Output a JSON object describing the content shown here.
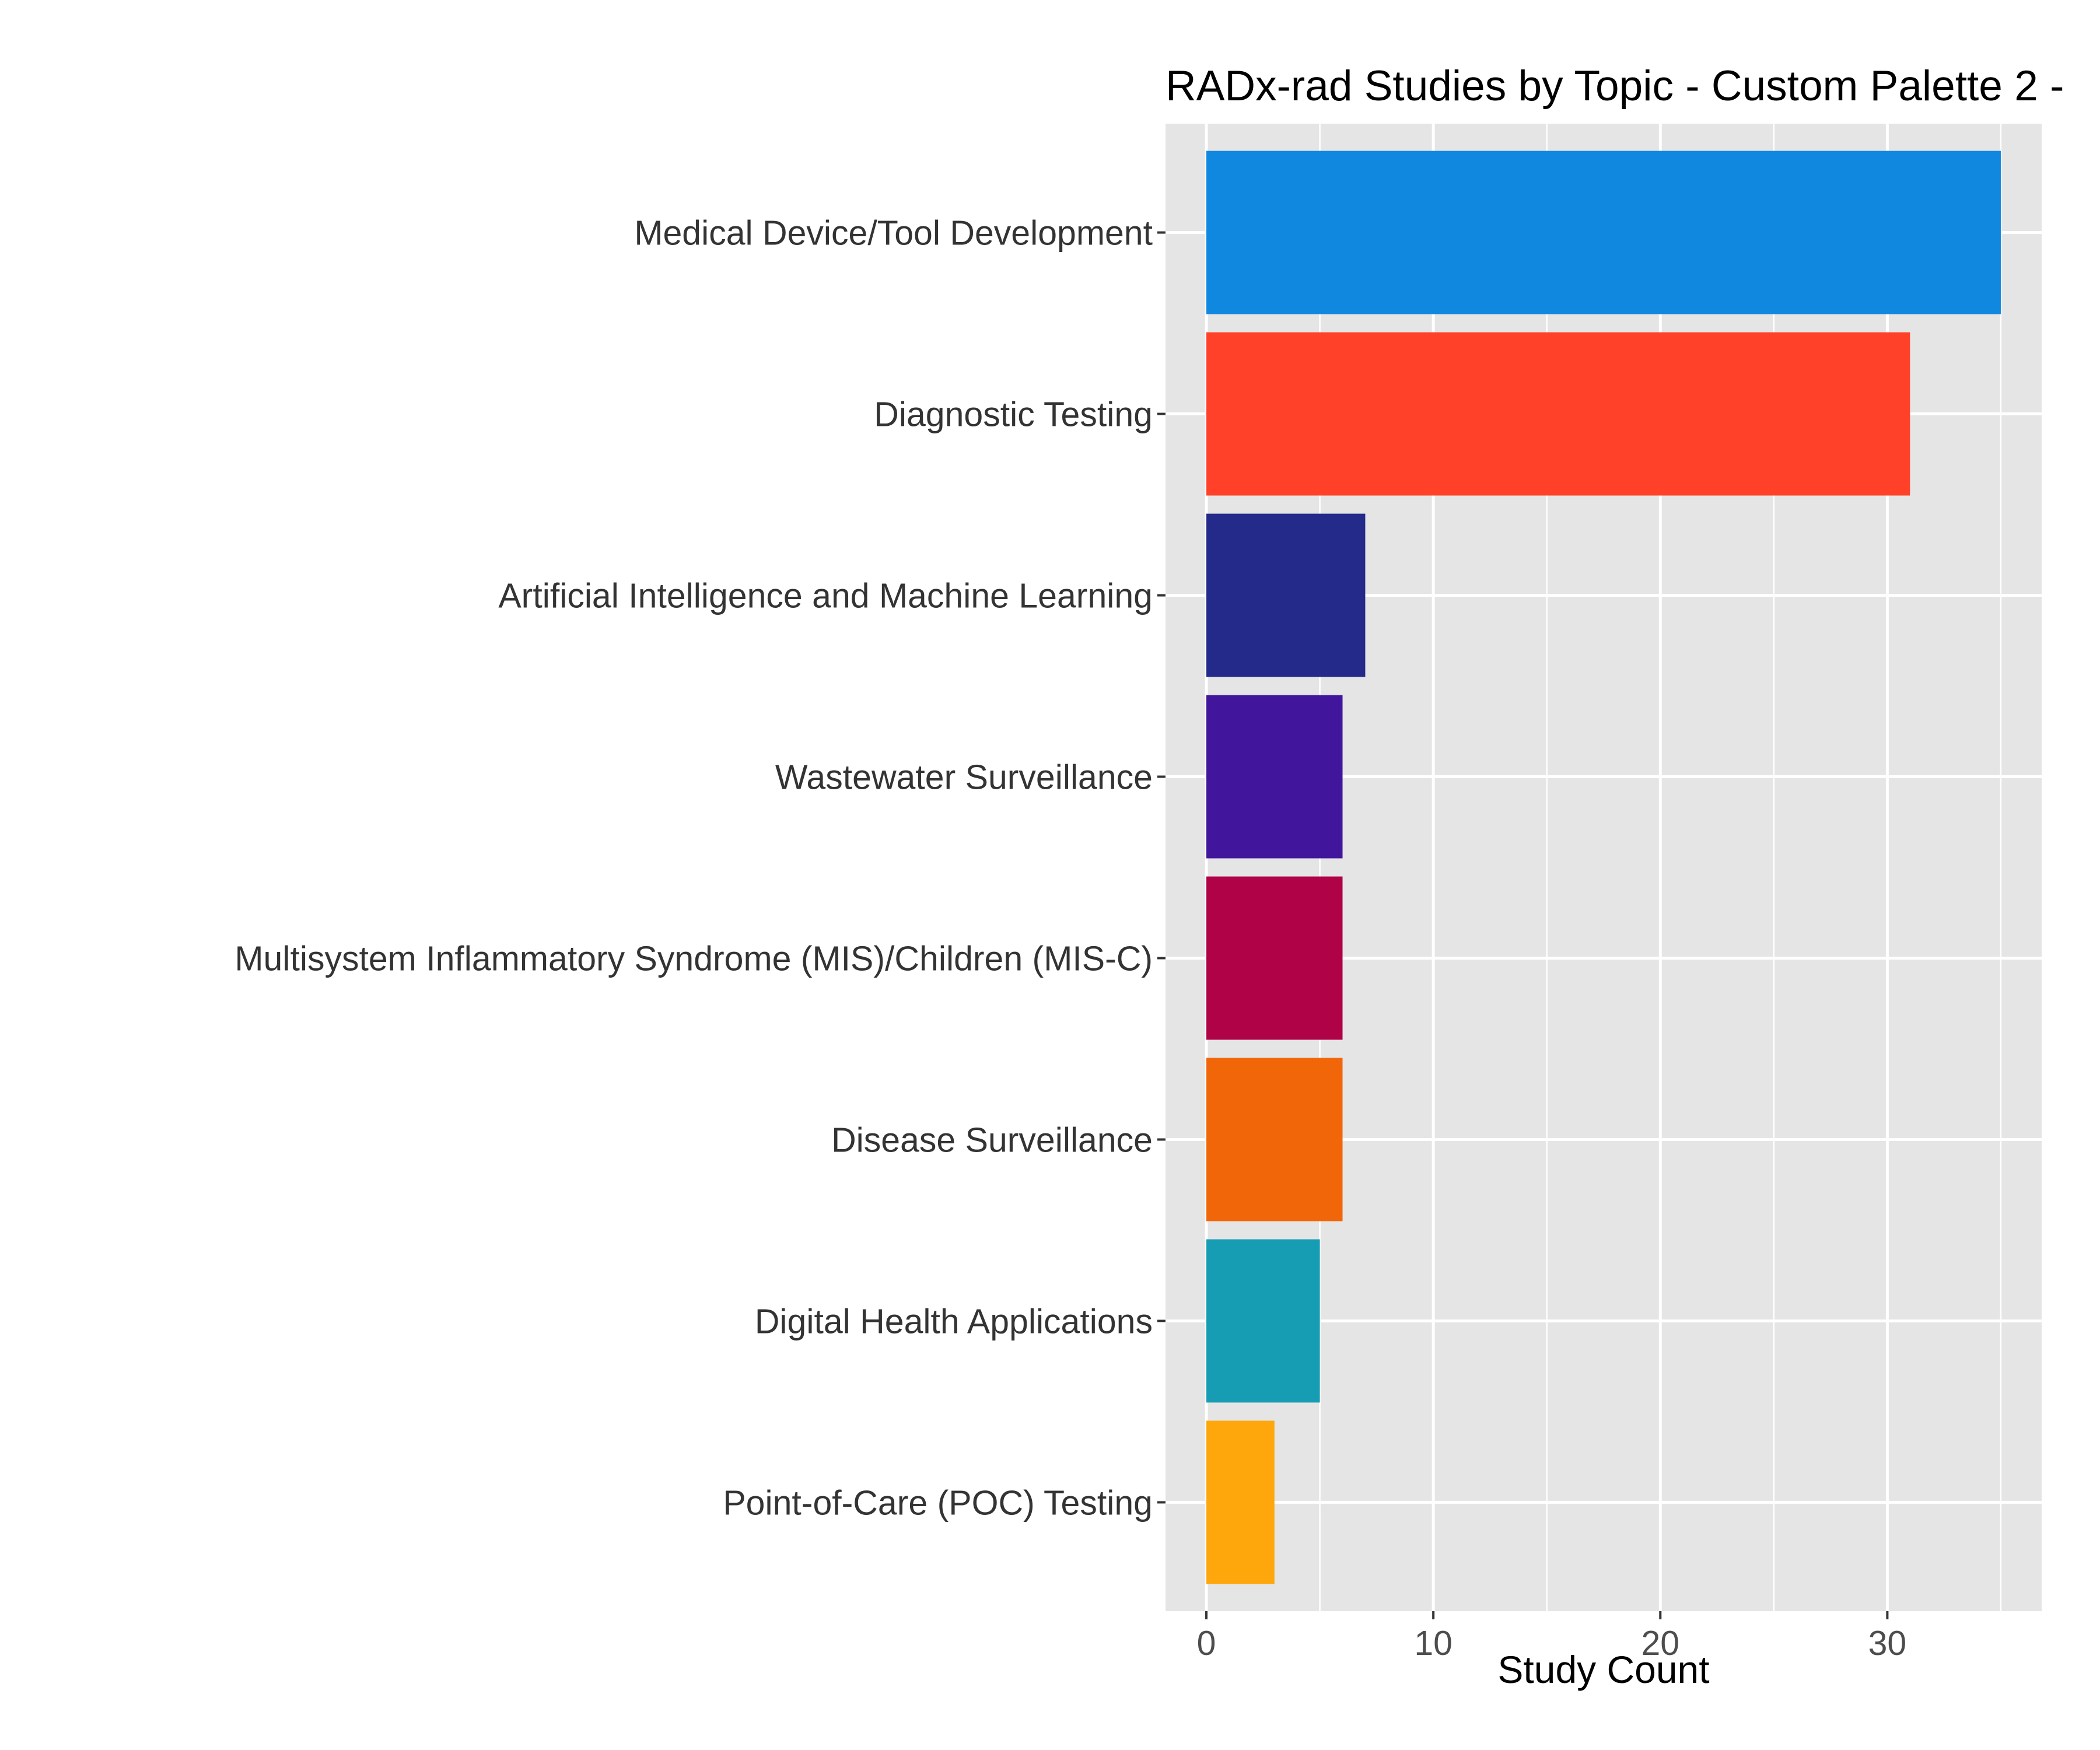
{
  "chart_data": {
    "type": "bar",
    "orientation": "horizontal",
    "title": "RADx-rad Studies by Topic - Custom Palette 2 -",
    "xlabel": "Study Count",
    "ylabel": "",
    "xlim": [
      -1.8,
      36.8
    ],
    "x_ticks": [
      0,
      10,
      20,
      30
    ],
    "grid": true,
    "legend": "none",
    "categories": [
      "Medical Device/Tool Development",
      "Diagnostic Testing",
      "Artificial Intelligence and Machine Learning",
      "Wastewater Surveillance",
      "Multisystem Inflammatory Syndrome (MIS)/Children (MIS-C)",
      "Disease Surveillance",
      "Digital Health Applications",
      "Point-of-Care (POC) Testing"
    ],
    "values": [
      35,
      31,
      7,
      6,
      6,
      6,
      5,
      3
    ],
    "colors": [
      "#1188E0",
      "#FF4129",
      "#232A8A",
      "#41169C",
      "#B00246",
      "#F2660A",
      "#169DB3",
      "#FEA70D"
    ],
    "panel_background": "#E5E5E5",
    "grid_color": "#FFFFFF"
  }
}
